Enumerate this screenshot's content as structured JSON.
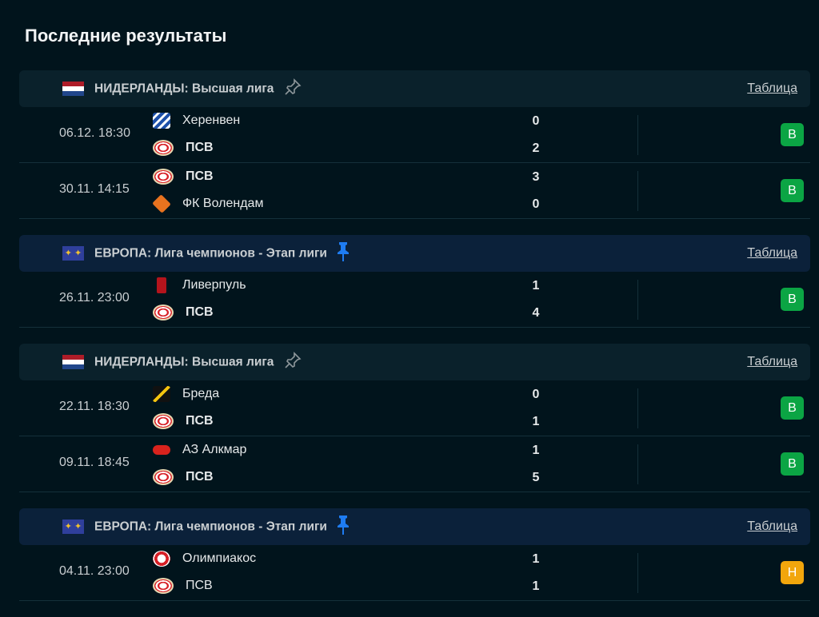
{
  "page_title": "Последние результаты",
  "colors": {
    "win": "#0ba544",
    "draw": "#f2a60c",
    "pin_active": "#1e7cf2",
    "pin_inactive": "#8e979b"
  },
  "groups": [
    {
      "country": "НИДЕРЛАНДЫ:",
      "league": "Высшая лига",
      "flag": "netherlands-flag",
      "pinned": false,
      "table_link": "Таблица",
      "matches": [
        {
          "date": "06.12. 18:30",
          "home": {
            "name": "Херенвен",
            "logo": "heerenveen-logo",
            "bold": false
          },
          "away": {
            "name": "ПСВ",
            "logo": "psv-logo",
            "bold": true
          },
          "score_home": "0",
          "score_away": "2",
          "result": "В",
          "result_type": "win"
        },
        {
          "date": "30.11. 14:15",
          "home": {
            "name": "ПСВ",
            "logo": "psv-logo",
            "bold": true
          },
          "away": {
            "name": "ФК Волендам",
            "logo": "volendam-logo",
            "bold": false
          },
          "score_home": "3",
          "score_away": "0",
          "result": "В",
          "result_type": "win"
        }
      ]
    },
    {
      "country": "ЕВРОПА:",
      "league": "Лига чемпионов - Этап лиги",
      "flag": "world-flag",
      "pinned": true,
      "table_link": "Таблица",
      "matches": [
        {
          "date": "26.11. 23:00",
          "home": {
            "name": "Ливерпуль",
            "logo": "liverpool-logo",
            "bold": false
          },
          "away": {
            "name": "ПСВ",
            "logo": "psv-logo",
            "bold": true
          },
          "score_home": "1",
          "score_away": "4",
          "result": "В",
          "result_type": "win"
        }
      ]
    },
    {
      "country": "НИДЕРЛАНДЫ:",
      "league": "Высшая лига",
      "flag": "netherlands-flag",
      "pinned": false,
      "table_link": "Таблица",
      "matches": [
        {
          "date": "22.11. 18:30",
          "home": {
            "name": "Бреда",
            "logo": "breda-logo",
            "bold": false
          },
          "away": {
            "name": "ПСВ",
            "logo": "psv-logo",
            "bold": true
          },
          "score_home": "0",
          "score_away": "1",
          "result": "В",
          "result_type": "win"
        },
        {
          "date": "09.11. 18:45",
          "home": {
            "name": "АЗ Алкмар",
            "logo": "az-alkmaar-logo",
            "bold": false
          },
          "away": {
            "name": "ПСВ",
            "logo": "psv-logo",
            "bold": true
          },
          "score_home": "1",
          "score_away": "5",
          "result": "В",
          "result_type": "win"
        }
      ]
    },
    {
      "country": "ЕВРОПА:",
      "league": "Лига чемпионов - Этап лиги",
      "flag": "world-flag",
      "pinned": true,
      "table_link": "Таблица",
      "matches": [
        {
          "date": "04.11. 23:00",
          "home": {
            "name": "Олимпиакос",
            "logo": "olympiacos-logo",
            "bold": false
          },
          "away": {
            "name": "ПСВ",
            "logo": "psv-logo",
            "bold": false
          },
          "score_home": "1",
          "score_away": "1",
          "result": "Н",
          "result_type": "draw"
        }
      ]
    }
  ]
}
